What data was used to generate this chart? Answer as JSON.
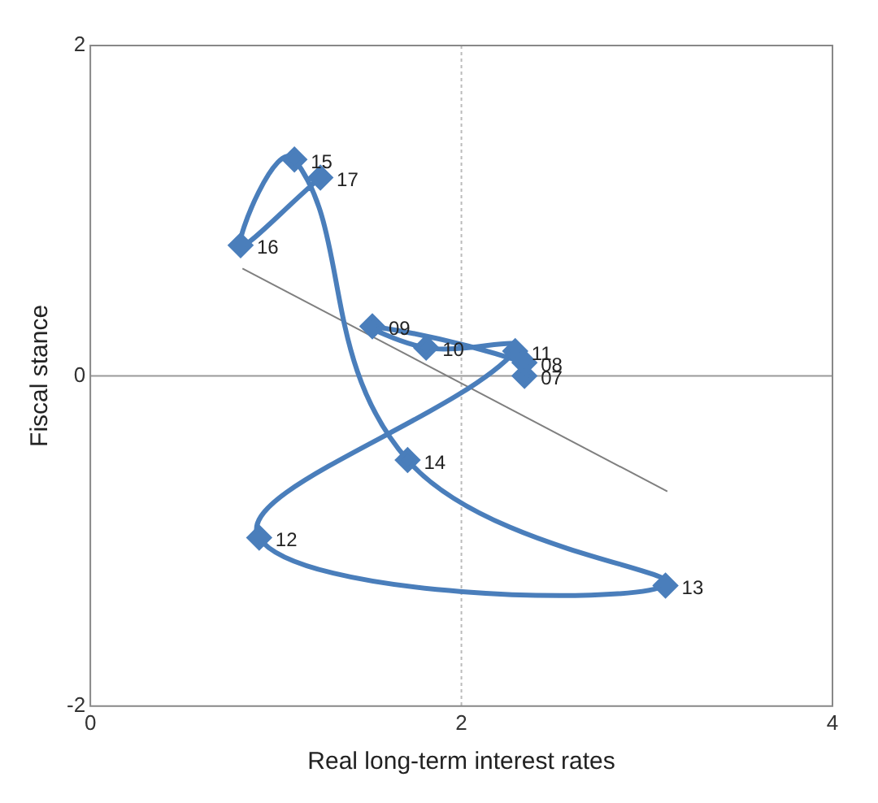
{
  "chart_data": {
    "type": "line",
    "xlabel": "Real long-term interest rates",
    "ylabel": "Fiscal stance",
    "xlim": [
      0,
      4
    ],
    "xticks": [
      0,
      2,
      4
    ],
    "ylim": [
      -2,
      2
    ],
    "yticks": [
      -2,
      0,
      2
    ],
    "legend": false,
    "ref_lines": [
      {
        "axis": "x",
        "value": 2,
        "color": "#bbbbbb",
        "line_style": "dotted"
      },
      {
        "axis": "y",
        "value": 0,
        "color": "#999999",
        "line_style": "solid"
      }
    ],
    "series": [
      {
        "color": "#4a7ebb",
        "marker": "diamond",
        "x": [
          2.34,
          2.34,
          1.52,
          1.81,
          2.29,
          0.91,
          3.1,
          1.71,
          1.1,
          0.81,
          1.24
        ],
        "values": [
          0.0,
          0.08,
          0.3,
          0.17,
          0.15,
          -0.98,
          -1.27,
          -0.51,
          1.31,
          0.79,
          1.2
        ]
      },
      {
        "color": "#7f7f7f",
        "marker": "none",
        "x": [
          0.82,
          3.11
        ],
        "values": [
          0.65,
          -0.7
        ]
      }
    ],
    "annotations": [
      {
        "text": "07",
        "x": 2.34,
        "y": 0.0
      },
      {
        "text": "08",
        "x": 2.34,
        "y": 0.08
      },
      {
        "text": "09",
        "x": 1.52,
        "y": 0.3
      },
      {
        "text": "10",
        "x": 1.81,
        "y": 0.17
      },
      {
        "text": "11",
        "x": 2.29,
        "y": 0.15
      },
      {
        "text": "12",
        "x": 0.91,
        "y": -0.98
      },
      {
        "text": "13",
        "x": 3.1,
        "y": -1.27
      },
      {
        "text": "14",
        "x": 1.71,
        "y": -0.51
      },
      {
        "text": "15",
        "x": 1.1,
        "y": 1.31
      },
      {
        "text": "16",
        "x": 0.81,
        "y": 0.79
      },
      {
        "text": "17",
        "x": 1.24,
        "y": 1.2
      }
    ]
  }
}
